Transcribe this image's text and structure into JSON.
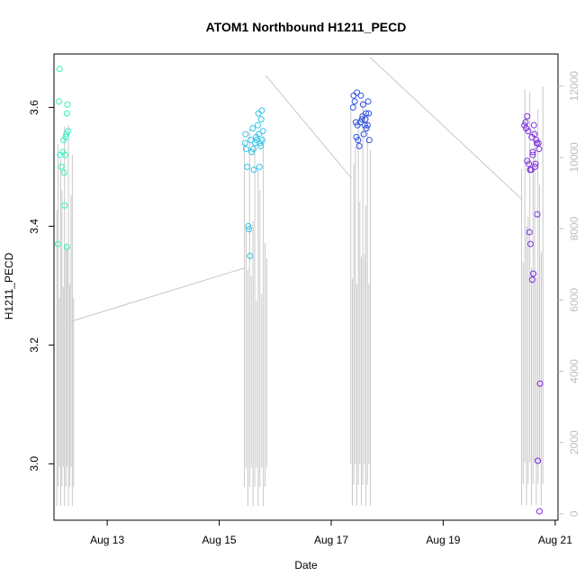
{
  "chart_data": {
    "type": "scatter",
    "title": "ATOM1 Northbound H1211_PECD",
    "xlabel": "Date",
    "ylabel": "H1211_PECD",
    "x_unit": "day-of-August",
    "xlim": [
      12.05,
      21.05
    ],
    "ylim": [
      2.905,
      3.69
    ],
    "y2lim": [
      -180,
      12900
    ],
    "x_ticks": [
      {
        "value": 13,
        "label": "Aug 13"
      },
      {
        "value": 15,
        "label": "Aug 15"
      },
      {
        "value": 17,
        "label": "Aug 17"
      },
      {
        "value": 19,
        "label": "Aug 19"
      },
      {
        "value": 21,
        "label": "Aug 21"
      }
    ],
    "y_ticks": [
      {
        "value": 3.0,
        "label": "3.0"
      },
      {
        "value": 3.2,
        "label": "3.2"
      },
      {
        "value": 3.4,
        "label": "3.4"
      },
      {
        "value": 3.6,
        "label": "3.6"
      }
    ],
    "y2_ticks": [
      {
        "value": 0,
        "label": "0"
      },
      {
        "value": 2000,
        "label": "2000"
      },
      {
        "value": 4000,
        "label": "4000"
      },
      {
        "value": 6000,
        "label": "6000"
      },
      {
        "value": 8000,
        "label": "8000"
      },
      {
        "value": 10000,
        "label": "10000"
      },
      {
        "value": 12000,
        "label": "12000"
      }
    ],
    "series": [
      {
        "color": "#33f2c2",
        "points": [
          [
            12.15,
            3.665
          ],
          [
            12.14,
            3.61
          ],
          [
            12.12,
            3.37
          ],
          [
            12.16,
            3.52
          ],
          [
            12.18,
            3.5
          ],
          [
            12.21,
            3.525
          ],
          [
            12.23,
            3.49
          ],
          [
            12.22,
            3.545
          ],
          [
            12.24,
            3.435
          ],
          [
            12.26,
            3.55
          ],
          [
            12.25,
            3.52
          ],
          [
            12.28,
            3.59
          ],
          [
            12.27,
            3.555
          ],
          [
            12.29,
            3.605
          ],
          [
            12.3,
            3.56
          ],
          [
            12.28,
            3.365
          ]
        ]
      },
      {
        "color": "#33c3e8",
        "points": [
          [
            15.47,
            3.555
          ],
          [
            15.46,
            3.54
          ],
          [
            15.48,
            3.53
          ],
          [
            15.5,
            3.5
          ],
          [
            15.52,
            3.4
          ],
          [
            15.53,
            3.395
          ],
          [
            15.55,
            3.35
          ],
          [
            15.56,
            3.545
          ],
          [
            15.58,
            3.525
          ],
          [
            15.6,
            3.565
          ],
          [
            15.61,
            3.53
          ],
          [
            15.62,
            3.495
          ],
          [
            15.64,
            3.54
          ],
          [
            15.66,
            3.55
          ],
          [
            15.67,
            3.545
          ],
          [
            15.69,
            3.57
          ],
          [
            15.7,
            3.59
          ],
          [
            15.71,
            3.555
          ],
          [
            15.73,
            3.54
          ],
          [
            15.74,
            3.535
          ],
          [
            15.76,
            3.595
          ],
          [
            15.77,
            3.545
          ],
          [
            15.72,
            3.5
          ],
          [
            15.75,
            3.58
          ],
          [
            15.78,
            3.56
          ]
        ]
      },
      {
        "color": "#2f52e0",
        "points": [
          [
            17.39,
            3.6
          ],
          [
            17.4,
            3.62
          ],
          [
            17.42,
            3.61
          ],
          [
            17.44,
            3.575
          ],
          [
            17.46,
            3.625
          ],
          [
            17.47,
            3.57
          ],
          [
            17.48,
            3.545
          ],
          [
            17.5,
            3.535
          ],
          [
            17.52,
            3.575
          ],
          [
            17.53,
            3.62
          ],
          [
            17.55,
            3.58
          ],
          [
            17.57,
            3.605
          ],
          [
            17.58,
            3.555
          ],
          [
            17.6,
            3.57
          ],
          [
            17.61,
            3.58
          ],
          [
            17.62,
            3.59
          ],
          [
            17.63,
            3.565
          ],
          [
            17.65,
            3.57
          ],
          [
            17.66,
            3.61
          ],
          [
            17.67,
            3.59
          ],
          [
            17.68,
            3.545
          ],
          [
            17.45,
            3.55
          ],
          [
            17.56,
            3.585
          ]
        ]
      },
      {
        "color": "#7a2de0",
        "points": [
          [
            20.45,
            3.57
          ],
          [
            20.47,
            3.575
          ],
          [
            20.48,
            3.565
          ],
          [
            20.5,
            3.585
          ],
          [
            20.52,
            3.56
          ],
          [
            20.53,
            3.505
          ],
          [
            20.55,
            3.495
          ],
          [
            20.54,
            3.39
          ],
          [
            20.56,
            3.37
          ],
          [
            20.58,
            3.55
          ],
          [
            20.6,
            3.52
          ],
          [
            20.59,
            3.31
          ],
          [
            20.61,
            3.32
          ],
          [
            20.62,
            3.57
          ],
          [
            20.63,
            3.555
          ],
          [
            20.64,
            3.5
          ],
          [
            20.66,
            3.545
          ],
          [
            20.67,
            3.54
          ],
          [
            20.68,
            3.42
          ],
          [
            20.69,
            3.005
          ],
          [
            20.7,
            3.54
          ],
          [
            20.71,
            3.53
          ],
          [
            20.73,
            3.135
          ],
          [
            20.72,
            2.92
          ],
          [
            20.6,
            3.525
          ],
          [
            20.5,
            3.51
          ],
          [
            20.57,
            3.495
          ],
          [
            20.65,
            3.505
          ]
        ]
      }
    ],
    "secondary_line": {
      "color": "#c8c8c8",
      "axis": "right",
      "x_breaks": [
        [
          12.1,
          12.4
        ],
        [
          15.45,
          15.85
        ],
        [
          17.35,
          17.7
        ],
        [
          20.4,
          20.78
        ]
      ],
      "y2_breaks": [
        [
          0,
          11000
        ],
        [
          0,
          10800
        ],
        [
          0,
          11600
        ],
        [
          0,
          12000
        ]
      ],
      "connectors": [
        [
          12.36,
          5400,
          15.46,
          6900
        ],
        [
          15.83,
          12300,
          17.37,
          9400
        ],
        [
          17.7,
          12800,
          20.42,
          8800
        ]
      ]
    }
  }
}
